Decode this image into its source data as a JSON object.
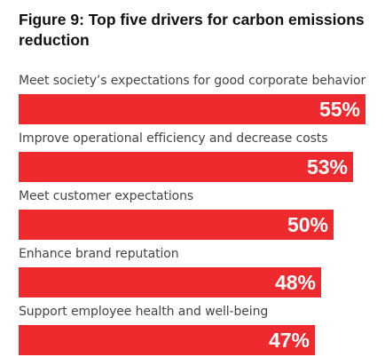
{
  "title": "Figure 9: Top five drivers for carbon emissions reduction",
  "colors": {
    "bar": "#ee2a2e",
    "value_text": "#ffffff",
    "label_text": "#444444",
    "title_text": "#111111"
  },
  "chart_data": {
    "type": "bar",
    "orientation": "horizontal",
    "title": "Figure 9: Top five drivers for carbon emissions reduction",
    "categories": [
      "Meet society’s expectations for good corporate behavior",
      "Improve operational efficiency and decrease costs",
      "Meet customer expectations",
      "Enhance brand reputation",
      "Support employee health and well-being"
    ],
    "values": [
      55,
      53,
      50,
      48,
      47
    ],
    "value_labels": [
      "55%",
      "53%",
      "50%",
      "48%",
      "47%"
    ],
    "unit": "%",
    "xlim": [
      0,
      55
    ],
    "grid": false,
    "legend": "none"
  }
}
